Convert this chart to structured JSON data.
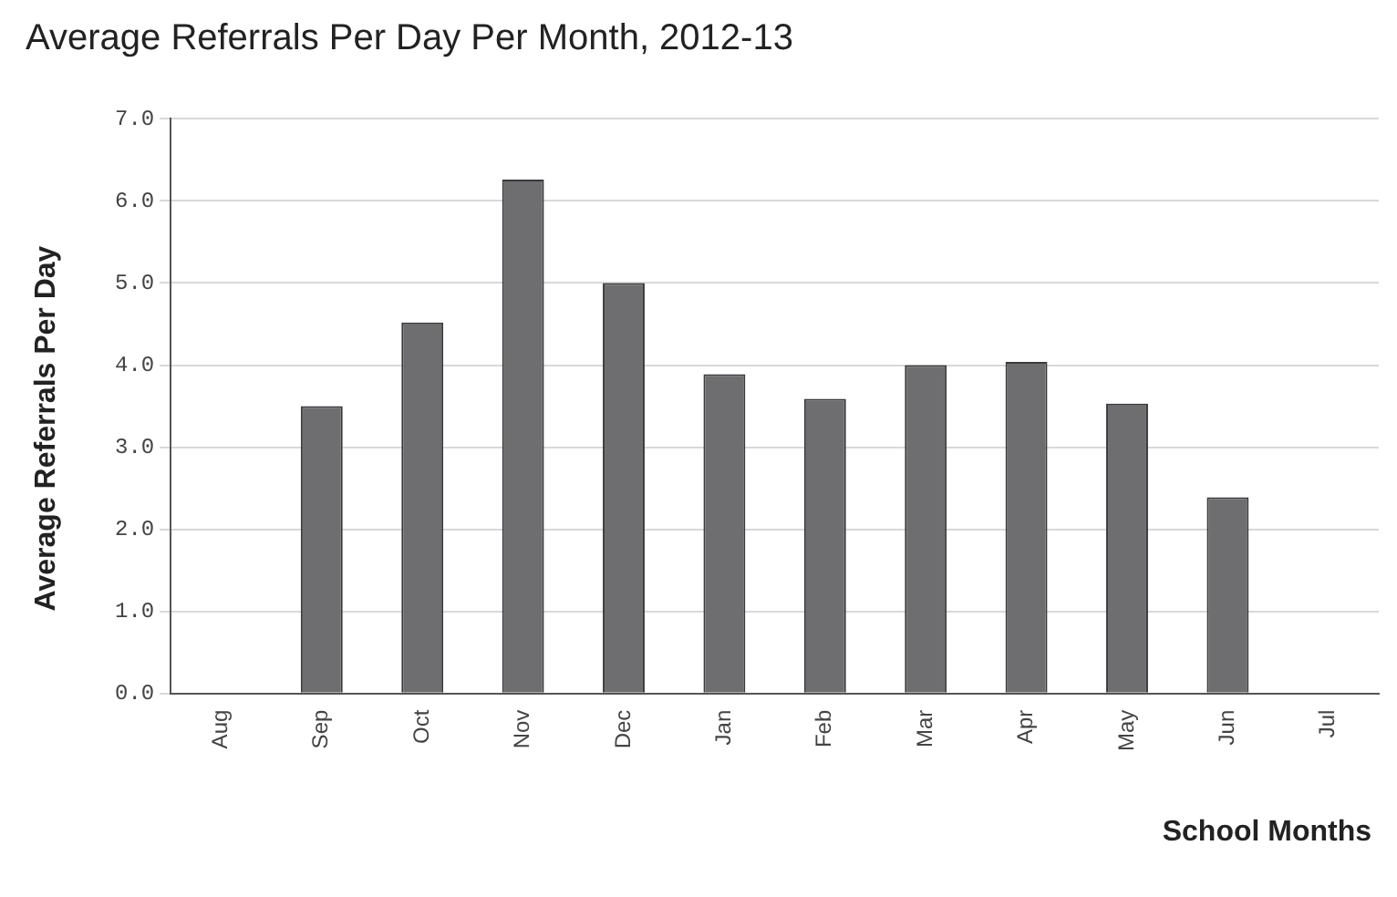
{
  "chart_data": {
    "type": "bar",
    "title": "Average Referrals Per Day Per Month, 2012-13",
    "xlabel": "School Months",
    "ylabel": "Average Referrals Per Day",
    "categories": [
      "Aug",
      "Sep",
      "Oct",
      "Nov",
      "Dec",
      "Jan",
      "Feb",
      "Mar",
      "Apr",
      "May",
      "Jun",
      "Jul"
    ],
    "values": [
      null,
      3.5,
      4.52,
      6.26,
      5.0,
      3.89,
      3.59,
      4.0,
      4.04,
      3.53,
      2.39,
      null
    ],
    "color": "#6e6e70",
    "ylim": [
      0,
      7
    ],
    "yticks": [
      {
        "value": 0,
        "label": "0.0"
      },
      {
        "value": 1,
        "label": "1.0"
      },
      {
        "value": 2,
        "label": "2.0"
      },
      {
        "value": 3,
        "label": "3.0"
      },
      {
        "value": 4,
        "label": "4.0"
      },
      {
        "value": 5,
        "label": "5.0"
      },
      {
        "value": 6,
        "label": "6.0"
      },
      {
        "value": 7,
        "label": "7.0"
      }
    ],
    "grid": "y",
    "legend": false
  }
}
